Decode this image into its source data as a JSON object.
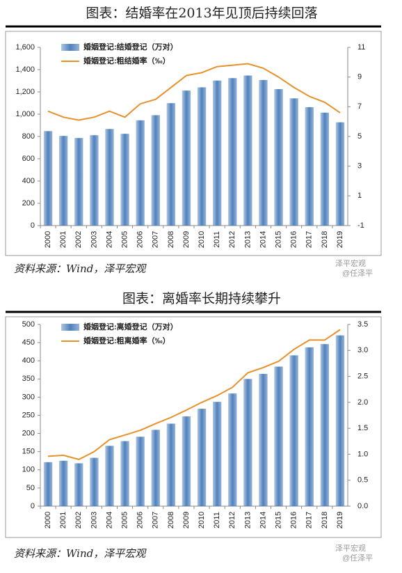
{
  "chart_data": [
    {
      "type": "bar-line",
      "title": "图表：结婚率在2013年见顶后持续回落",
      "source": "资料来源：Wind，泽平宏观",
      "watermark": [
        "泽平宏观",
        "@任泽平"
      ],
      "categories": [
        "2000",
        "2001",
        "2002",
        "2003",
        "2004",
        "2005",
        "2006",
        "2007",
        "2008",
        "2009",
        "2010",
        "2011",
        "2012",
        "2013",
        "2014",
        "2015",
        "2016",
        "2017",
        "2018",
        "2019"
      ],
      "series": [
        {
          "name": "婚姻登记:结婚登记（万对）",
          "color": "#4f81bd",
          "values": [
            848,
            805,
            786,
            811,
            867,
            824,
            945,
            991,
            1099,
            1212,
            1241,
            1302,
            1324,
            1347,
            1307,
            1225,
            1142,
            1063,
            1014,
            927
          ]
        },
        {
          "name": "婚姻登记:粗结婚率（‰）",
          "color": "#e8902b",
          "axis": "y2",
          "values": [
            6.7,
            6.3,
            6.1,
            6.3,
            6.7,
            6.3,
            7.2,
            7.5,
            8.3,
            9.1,
            9.3,
            9.7,
            9.8,
            9.9,
            9.6,
            9.0,
            8.3,
            7.7,
            7.3,
            6.6
          ]
        }
      ],
      "ylim": [
        0,
        1600
      ],
      "yticks": [
        0,
        200,
        400,
        600,
        800,
        {
          "value": 1000,
          "label": "1,000"
        },
        {
          "value": 1200,
          "label": "1,200"
        },
        {
          "value": 1400,
          "label": "1,400"
        },
        {
          "value": 1600,
          "label": "1,600"
        }
      ],
      "y2lim": [
        -1,
        11
      ],
      "y2ticks": [
        -1,
        1,
        3,
        5,
        7,
        9,
        11
      ],
      "legend": "upper left"
    },
    {
      "type": "bar-line",
      "title": "图表：离婚率长期持续攀升",
      "source": "资料来源：Wind，泽平宏观",
      "watermark": [
        "泽平宏观",
        "@任泽平"
      ],
      "categories": [
        "2000",
        "2001",
        "2002",
        "2003",
        "2004",
        "2005",
        "2006",
        "2007",
        "2008",
        "2009",
        "2010",
        "2011",
        "2012",
        "2013",
        "2014",
        "2015",
        "2016",
        "2017",
        "2018",
        "2019"
      ],
      "series": [
        {
          "name": "婚姻登记:离婚登记（万对）",
          "color": "#4f81bd",
          "values": [
            121,
            125,
            118,
            133,
            166,
            179,
            191,
            210,
            227,
            247,
            268,
            287,
            310,
            350,
            364,
            384,
            415,
            437,
            446,
            470
          ]
        },
        {
          "name": "婚姻登记:粗离婚率（‰）",
          "color": "#e8902b",
          "axis": "y2",
          "values": [
            0.96,
            0.98,
            0.9,
            1.05,
            1.28,
            1.37,
            1.46,
            1.59,
            1.71,
            1.85,
            2.0,
            2.13,
            2.29,
            2.57,
            2.67,
            2.79,
            3.02,
            3.2,
            3.2,
            3.4
          ]
        }
      ],
      "ylim": [
        0,
        500
      ],
      "yticks": [
        0,
        50,
        100,
        150,
        200,
        250,
        300,
        350,
        400,
        450,
        500
      ],
      "y2lim": [
        0,
        3.5
      ],
      "y2ticks": [
        {
          "value": 0,
          "label": "0.0"
        },
        {
          "value": 0.5,
          "label": "0.5"
        },
        {
          "value": 1,
          "label": "1.0"
        },
        {
          "value": 1.5,
          "label": "1.5"
        },
        {
          "value": 2,
          "label": "2.0"
        },
        {
          "value": 2.5,
          "label": "2.5"
        },
        {
          "value": 3,
          "label": "3.0"
        },
        {
          "value": 3.5,
          "label": "3.5"
        }
      ],
      "legend": "upper left"
    }
  ]
}
